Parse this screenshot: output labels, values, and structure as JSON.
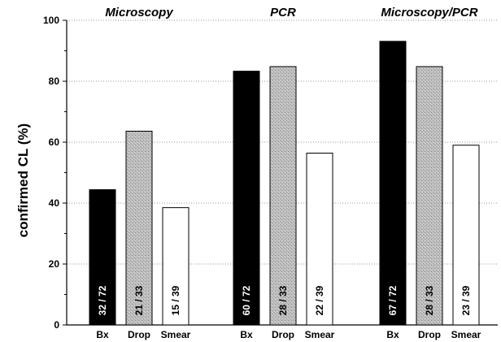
{
  "chart_data": {
    "type": "bar",
    "ylabel": "confirmed CL (%)",
    "ylim": [
      0,
      100
    ],
    "yticks": [
      0,
      20,
      40,
      60,
      80,
      100
    ],
    "grid": "horizontal dotted",
    "categories": [
      "Bx",
      "Drop",
      "Smear"
    ],
    "category_colors": {
      "Bx": "#000000",
      "Drop": "#b4b4b4",
      "Smear": "#ffffff"
    },
    "groups": [
      {
        "title": "Microscopy",
        "bars": [
          {
            "category": "Bx",
            "value": 44.4,
            "label": "32 / 72"
          },
          {
            "category": "Drop",
            "value": 63.6,
            "label": "21 / 33"
          },
          {
            "category": "Smear",
            "value": 38.5,
            "label": "15 / 39"
          }
        ]
      },
      {
        "title": "PCR",
        "bars": [
          {
            "category": "Bx",
            "value": 83.3,
            "label": "60 / 72"
          },
          {
            "category": "Drop",
            "value": 84.8,
            "label": "28 / 33"
          },
          {
            "category": "Smear",
            "value": 56.4,
            "label": "22 / 39"
          }
        ]
      },
      {
        "title": "Microscopy/PCR",
        "bars": [
          {
            "category": "Bx",
            "value": 93.1,
            "label": "67 / 72"
          },
          {
            "category": "Drop",
            "value": 84.8,
            "label": "28 / 33"
          },
          {
            "category": "Smear",
            "value": 59.0,
            "label": "23 / 39"
          }
        ]
      }
    ]
  }
}
